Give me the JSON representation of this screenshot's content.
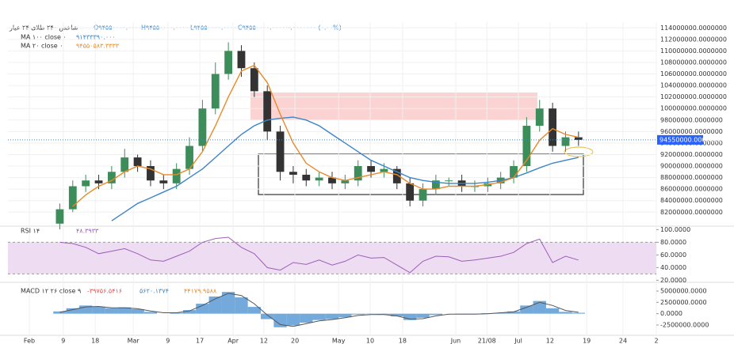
{
  "chart_data": [
    {
      "type": "candlestick",
      "title": "شاخص ۲۴۰ طلای ۲۴ عیار",
      "header_values": [
        "O۹۴۵۵۰۰۰۰.۰۰۰۰۰۰۰",
        "H۹۴۵۵۰۰۰۰.۰۰۰۰۰۰۰",
        "L۹۴۵۵۰۰۰۰.۰۰۰۰۰۰۰",
        "C۹۴۵۵۰۰۰۰.۰۰۰۰۰۰۰",
        "۰.۰۰۰۰۰۰۰ (۰.۰۰%)"
      ],
      "x": [
        12,
        15,
        18,
        21,
        24,
        27,
        30,
        33,
        36,
        39,
        42,
        45,
        48,
        51,
        54,
        57,
        60,
        63,
        66,
        69,
        72,
        75,
        78,
        81,
        84,
        87,
        90,
        93,
        96,
        99,
        102,
        105,
        108,
        111,
        114,
        117,
        120,
        123,
        126,
        129,
        132
      ],
      "open": [
        80000000,
        82500000,
        86500000,
        87500000,
        87000000,
        89000000,
        91500000,
        90000000,
        87500000,
        87000000,
        89500000,
        93500000,
        100000000,
        106000000,
        110000000,
        107000000,
        103000000,
        96000000,
        89000000,
        88500000,
        87500000,
        88000000,
        87000000,
        87500000,
        90000000,
        89000000,
        89500000,
        87000000,
        84000000,
        86000000,
        87500000,
        87500000,
        86500000,
        86500000,
        87000000,
        88000000,
        90000000,
        97000000,
        100000000,
        93500000,
        95000000
      ],
      "high": [
        83500000,
        87500000,
        88500000,
        88500000,
        90000000,
        93000000,
        92000000,
        91000000,
        88500000,
        90500000,
        95000000,
        101500000,
        108000000,
        111500000,
        111000000,
        108000000,
        104000000,
        97000000,
        90000000,
        89500000,
        89000000,
        89000000,
        88500000,
        91000000,
        91000000,
        90500000,
        90000000,
        88000000,
        87000000,
        88500000,
        88000000,
        88500000,
        87500000,
        88000000,
        89000000,
        91000000,
        98500000,
        101500000,
        101000000,
        96000000,
        96000000
      ],
      "low": [
        79000000,
        82000000,
        85500000,
        86000000,
        86000000,
        88000000,
        89000000,
        86500000,
        86000000,
        86000000,
        88500000,
        92500000,
        99000000,
        105000000,
        105500000,
        102000000,
        94500000,
        87500000,
        87000000,
        86500000,
        86500000,
        86000000,
        86000000,
        86500000,
        88000000,
        88000000,
        86000000,
        83000000,
        83000000,
        85000000,
        86500000,
        85500000,
        85500000,
        85500000,
        86000000,
        87000000,
        89000000,
        96000000,
        92500000,
        92500000,
        93500000
      ],
      "close": [
        82500000,
        86500000,
        87500000,
        87000000,
        89000000,
        91500000,
        90000000,
        87500000,
        87000000,
        89500000,
        93500000,
        100000000,
        106000000,
        110000000,
        107000000,
        103000000,
        96000000,
        89000000,
        88500000,
        87500000,
        88000000,
        87000000,
        87500000,
        90000000,
        89000000,
        89500000,
        87000000,
        84000000,
        86000000,
        87500000,
        87500000,
        86500000,
        86500000,
        87000000,
        88000000,
        90000000,
        97000000,
        100000000,
        93500000,
        95000000,
        94550000
      ],
      "up_color": "#3c8d5a",
      "down_color": "#333333",
      "last_price": {
        "value": 94550000,
        "label": "94550000.0000000"
      },
      "series": [
        {
          "name": "MA ۱۰۰ close ۰",
          "legend_value": "۹۱۴۳۳۳۹۰.۰۰۰",
          "color": "#3d85c6",
          "values": [
            null,
            null,
            null,
            null,
            80500000,
            82000000,
            83500000,
            84500000,
            85500000,
            86500000,
            88000000,
            89500000,
            91500000,
            93500000,
            95500000,
            97000000,
            98000000,
            98300000,
            98500000,
            98000000,
            97000000,
            95500000,
            94000000,
            92500000,
            91000000,
            90000000,
            89000000,
            88000000,
            87500000,
            87200000,
            87000000,
            87000000,
            87000000,
            87200000,
            87500000,
            88000000,
            88800000,
            89700000,
            90500000,
            91000000,
            91500000
          ]
        },
        {
          "name": "MA ۲۰ close ۰",
          "legend_value": "۹۴۵۵۰۵۸۳.۳۳۳۳",
          "color": "#e8892b",
          "values": [
            null,
            83000000,
            85000000,
            86500000,
            87500000,
            89000000,
            90000000,
            89500000,
            88500000,
            88500000,
            89500000,
            92500000,
            97000000,
            102000000,
            106500000,
            107500000,
            104500000,
            99000000,
            94000000,
            90500000,
            89000000,
            88000000,
            87500000,
            88000000,
            88500000,
            89000000,
            88500000,
            87000000,
            86000000,
            86000000,
            86500000,
            86500000,
            86500000,
            86800000,
            87200000,
            88000000,
            91000000,
            94500000,
            96500000,
            95500000,
            95000000
          ]
        }
      ],
      "xlim": [
        0,
        150
      ],
      "xticks": [
        {
          "value": 4.95,
          "label": "Feb"
        },
        {
          "value": 12.8,
          "label": "9"
        },
        {
          "value": 20.2,
          "label": "18"
        },
        {
          "value": 29,
          "label": "Mar"
        },
        {
          "value": 37,
          "label": "9"
        },
        {
          "value": 44.4,
          "label": "17"
        },
        {
          "value": 52.1,
          "label": "Apr"
        },
        {
          "value": 59.2,
          "label": "12"
        },
        {
          "value": 66.4,
          "label": "20"
        },
        {
          "value": 76.5,
          "label": "May"
        },
        {
          "value": 83.8,
          "label": "10"
        },
        {
          "value": 91.3,
          "label": "18"
        },
        {
          "value": 103.6,
          "label": "Jun"
        },
        {
          "value": 110.8,
          "label": "21/08"
        },
        {
          "value": 118.1,
          "label": "Jul"
        },
        {
          "value": 125.4,
          "label": "12"
        },
        {
          "value": 133.9,
          "label": "19"
        },
        {
          "value": 142.3,
          "label": "24"
        },
        {
          "value": 150,
          "label": "2"
        }
      ],
      "ylim": [
        79700000,
        115000000
      ],
      "yticks": [
        {
          "value": 82000000,
          "label": "82000000.0000000"
        },
        {
          "value": 84000000,
          "label": "84000000.0000000"
        },
        {
          "value": 86000000,
          "label": "86000000.0000000"
        },
        {
          "value": 88000000,
          "label": "88000000.0000000"
        },
        {
          "value": 90000000,
          "label": "90000000.0000000"
        },
        {
          "value": 92000000,
          "label": "92000000.0000000"
        },
        {
          "value": 94000000,
          "label": "94000000.0000000"
        },
        {
          "value": 96000000,
          "label": "96000000.0000000"
        },
        {
          "value": 98000000,
          "label": "98000000.0000000"
        },
        {
          "value": 100000000,
          "label": "100000000.0000000"
        },
        {
          "value": 102000000,
          "label": "102000000.0000000"
        },
        {
          "value": 104000000,
          "label": "104000000.0000000"
        },
        {
          "value": 106000000,
          "label": "106000000.0000000"
        },
        {
          "value": 108000000,
          "label": "108000000.0000000"
        },
        {
          "value": 110000000,
          "label": "110000000.0000000"
        },
        {
          "value": 112000000,
          "label": "112000000.0000000"
        },
        {
          "value": 114000000,
          "label": "114000000.0000000"
        }
      ],
      "grid": true
    },
    {
      "type": "line",
      "series": [
        {
          "name": "RSI ۱۴",
          "legend_value": "۴۸.۳۹۳۳",
          "color": "#9c5fb5",
          "values": [
            80,
            78,
            72,
            62,
            66,
            70,
            62,
            52,
            50,
            58,
            66,
            80,
            86,
            88,
            72,
            62,
            40,
            36,
            48,
            45,
            52,
            44,
            50,
            60,
            55,
            56,
            44,
            32,
            50,
            58,
            57,
            50,
            52,
            55,
            58,
            64,
            78,
            85,
            48,
            58,
            52
          ]
        }
      ],
      "band": [
        30,
        80
      ],
      "band_color": "#eedcf2",
      "ylim": [
        18,
        103
      ],
      "yticks": [
        {
          "value": 100,
          "label": "100.0000"
        },
        {
          "value": 80,
          "label": "80.0000"
        },
        {
          "value": 60,
          "label": "60.0000"
        },
        {
          "value": 40,
          "label": "40.0000"
        },
        {
          "value": 20,
          "label": "20.0000"
        }
      ]
    },
    {
      "type": "bar",
      "series": [
        {
          "name": "MACD ۱۲ ۲۶ close ۹",
          "legend_value": "-۳۹۷۵۶.۵۴۱۶",
          "color": "#5b9bd5",
          "values": [
            500000,
            1200000,
            1800000,
            1500000,
            1200000,
            1400000,
            1000000,
            400000,
            0,
            200000,
            800000,
            2200000,
            3800000,
            4800000,
            3600000,
            1500000,
            -1200000,
            -3000000,
            -2600000,
            -2000000,
            -1400000,
            -1200000,
            -800000,
            -200000,
            -100000,
            -200000,
            -600000,
            -1400000,
            -900000,
            -300000,
            0,
            -100000,
            -100000,
            100000,
            200000,
            500000,
            1800000,
            2800000,
            1200000,
            400000,
            200000
          ]
        },
        {
          "name": "۵۶۲۰.۱۳۷۴",
          "legend_value": "۴۴۱۷۹.۹۵۸۸",
          "color": "#555555",
          "kind": "line",
          "values": [
            300000,
            900000,
            1500000,
            1600000,
            1300000,
            1300000,
            1100000,
            600000,
            200000,
            200000,
            600000,
            1800000,
            3300000,
            4500000,
            4000000,
            2200000,
            -300000,
            -2400000,
            -2800000,
            -2200000,
            -1600000,
            -1300000,
            -900000,
            -400000,
            -200000,
            -200000,
            -500000,
            -1200000,
            -1100000,
            -500000,
            -100000,
            -100000,
            -100000,
            0,
            200000,
            400000,
            1400000,
            2500000,
            1800000,
            700000,
            300000
          ]
        }
      ],
      "ylim": [
        -4600000,
        6400000
      ],
      "yticks": [
        {
          "value": 5000000,
          "label": "5000000.0000"
        },
        {
          "value": 2500000,
          "label": "2500000.0000"
        },
        {
          "value": 0,
          "label": "0.0000"
        },
        {
          "value": -2500000,
          "label": "-2500000.0000"
        }
      ]
    }
  ]
}
